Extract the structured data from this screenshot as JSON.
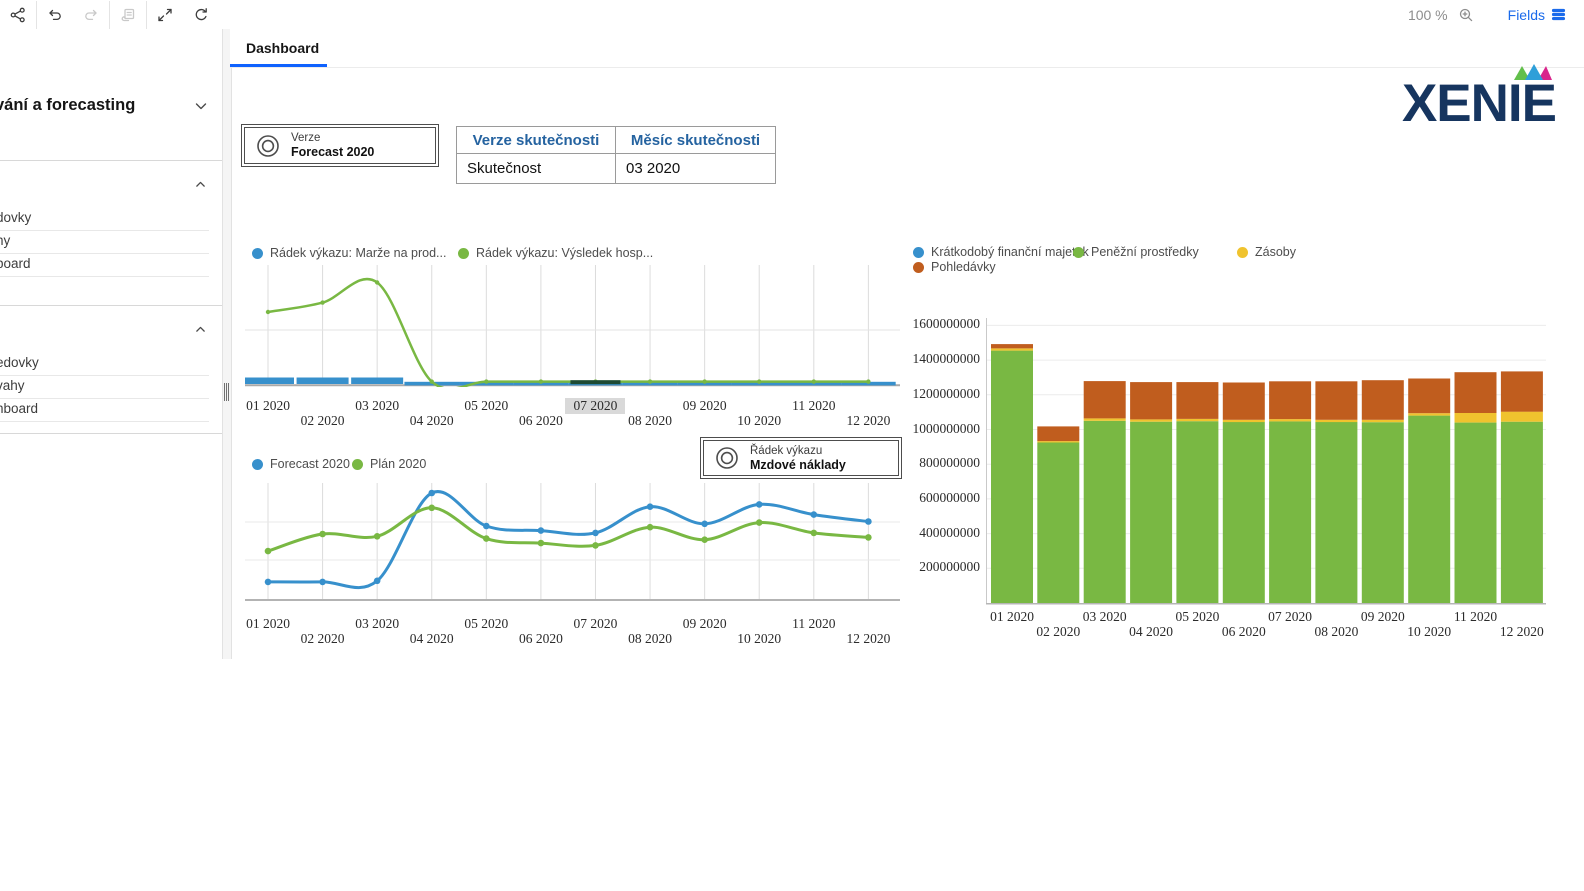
{
  "toolbar": {
    "zoom_level": "100 %",
    "fields_label": "Fields",
    "buttons": [
      "share",
      "undo",
      "redo",
      "save",
      "expand",
      "refresh"
    ]
  },
  "tabs": {
    "dashboard": "Dashboard"
  },
  "sidebar": {
    "title": "vání a forecasting",
    "sections": [
      {
        "items": [
          "dovky",
          "hy",
          "board"
        ]
      },
      {
        "items": [
          "edovky",
          "vahy",
          "hboard"
        ]
      }
    ]
  },
  "logo": {
    "text": "XENIE",
    "navy": "#16355f",
    "crown_colors": [
      "#62bf4b",
      "#2e9fd9",
      "#d9258c"
    ]
  },
  "filters": {
    "verze": {
      "label": "Verze",
      "value": "Forecast 2020"
    },
    "radek": {
      "label": "Řádek výkazu",
      "value": "Mzdové náklady"
    }
  },
  "table": {
    "headers": [
      "Verze skutečnosti",
      "Měsíc skutečnosti"
    ],
    "rows": [
      [
        "Skutečnost",
        "03 2020"
      ]
    ]
  },
  "colors": {
    "blue": "#3790cc",
    "green": "#79b843",
    "yellow": "#f0c32e",
    "orange": "#c05d1e",
    "highlight_dark": "#1d4a33",
    "accent": "#0f62fe"
  },
  "chart_data": [
    {
      "id": "report-rows-trend",
      "type": "line",
      "x": [
        "01 2020",
        "02 2020",
        "03 2020",
        "04 2020",
        "05 2020",
        "06 2020",
        "07 2020",
        "08 2020",
        "09 2020",
        "10 2020",
        "11 2020",
        "12 2020"
      ],
      "highlighted_x": "07 2020",
      "highlight_color": "#1d4a33",
      "note": "y-axis hidden; values are % of plot height (estimated)",
      "ylim": [
        0,
        100
      ],
      "series": [
        {
          "name": "Rádek výkazu: Marže na prod...",
          "color": "#3790cc",
          "style": "segments",
          "values": [
            4,
            4,
            5,
            1,
            1,
            1,
            1,
            1,
            1,
            1,
            1,
            1
          ]
        },
        {
          "name": "Rádek výkazu: Výsledek hosp...",
          "color": "#79b843",
          "style": "line",
          "values": [
            61,
            69,
            86,
            2,
            2,
            2,
            2,
            2,
            2,
            2,
            2,
            2
          ]
        }
      ]
    },
    {
      "id": "forecast-vs-plan",
      "type": "line",
      "x": [
        "01 2020",
        "02 2020",
        "03 2020",
        "04 2020",
        "05 2020",
        "06 2020",
        "07 2020",
        "08 2020",
        "09 2020",
        "10 2020",
        "11 2020",
        "12 2020"
      ],
      "note": "y-axis hidden; values are % of plot height (estimated)",
      "ylim": [
        0,
        100
      ],
      "series": [
        {
          "name": "Forecast 2020",
          "color": "#3790cc",
          "style": "line",
          "values": [
            15,
            15,
            16,
            93,
            64,
            60,
            58,
            81,
            66,
            83,
            74,
            68
          ]
        },
        {
          "name": "Plán 2020",
          "color": "#79b843",
          "style": "line",
          "values": [
            42,
            57,
            55,
            80,
            53,
            49,
            47,
            63,
            52,
            67,
            58,
            54
          ]
        }
      ]
    },
    {
      "id": "assets-stacked",
      "type": "bar",
      "stacked": true,
      "categories": [
        "01 2020",
        "02 2020",
        "03 2020",
        "04 2020",
        "05 2020",
        "06 2020",
        "07 2020",
        "08 2020",
        "09 2020",
        "10 2020",
        "11 2020",
        "12 2020"
      ],
      "ylim": [
        0,
        1600000000
      ],
      "yticks": [
        200000000,
        400000000,
        600000000,
        800000000,
        1000000000,
        1200000000,
        1400000000,
        1600000000
      ],
      "series": [
        {
          "name": "Krátkodobý finanční majetek",
          "color": "#3790cc",
          "values": [
            0,
            0,
            0,
            0,
            0,
            0,
            0,
            0,
            0,
            0,
            0,
            0
          ]
        },
        {
          "name": "Peněžní prostředky",
          "color": "#79b843",
          "values": [
            1455000000,
            925000000,
            1050000000,
            1045000000,
            1048000000,
            1043000000,
            1047000000,
            1043000000,
            1042000000,
            1080000000,
            1040000000,
            1045000000
          ]
        },
        {
          "name": "Zásoby",
          "color": "#f0c32e",
          "values": [
            12000000,
            8000000,
            14000000,
            13000000,
            13000000,
            13000000,
            13000000,
            13000000,
            14000000,
            14000000,
            55000000,
            58000000
          ]
        },
        {
          "name": "Pohledávky",
          "color": "#c05d1e",
          "values": [
            25000000,
            85000000,
            215000000,
            215000000,
            212000000,
            215000000,
            218000000,
            222000000,
            228000000,
            200000000,
            235000000,
            232000000
          ]
        }
      ]
    }
  ]
}
